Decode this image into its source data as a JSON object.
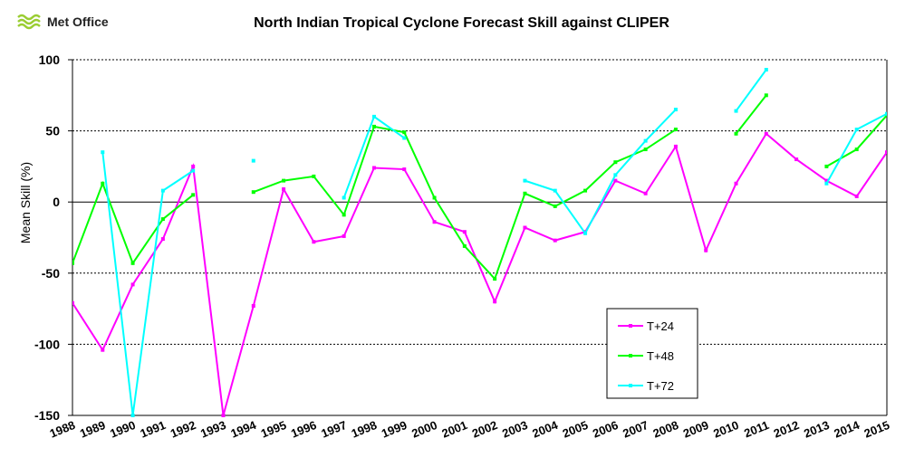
{
  "logo": {
    "text": "Met Office",
    "icon": "met-office-wave-icon",
    "color": "#9acd32"
  },
  "chart_data": {
    "type": "line",
    "title": "North Indian Tropical Cyclone Forecast Skill against CLIPER",
    "xlabel": "",
    "ylabel": "Mean Skill  (%)",
    "ylim": [
      -150,
      100
    ],
    "yticks": [
      100,
      50,
      0,
      -50,
      -100,
      -150
    ],
    "grid": true,
    "legend_position": "bottom-right",
    "categories": [
      "1988",
      "1989",
      "1990",
      "1991",
      "1992",
      "1993",
      "1994",
      "1995",
      "1996",
      "1997",
      "1998",
      "1999",
      "2000",
      "2001",
      "2002",
      "2003",
      "2004",
      "2005",
      "2006",
      "2007",
      "2008",
      "2009",
      "2010",
      "2011",
      "2012",
      "2013",
      "2014",
      "2015"
    ],
    "series": [
      {
        "name": "T+24",
        "color": "#ff00ff",
        "values": [
          -71,
          -104,
          -58,
          -26,
          25,
          -150,
          -73,
          9,
          -28,
          -24,
          24,
          23,
          -14,
          -21,
          -70,
          -18,
          -27,
          -21,
          15,
          6,
          39,
          -34,
          13,
          48,
          30,
          15,
          4,
          35
        ]
      },
      {
        "name": "T+48",
        "color": "#00ff00",
        "values": [
          -43,
          13,
          -43,
          -12,
          5,
          null,
          7,
          15,
          18,
          -9,
          53,
          49,
          3,
          -31,
          -54,
          6,
          -3,
          8,
          28,
          37,
          51,
          null,
          48,
          75,
          null,
          25,
          37,
          61
        ]
      },
      {
        "name": "T+72",
        "color": "#00ffff",
        "values": [
          null,
          35,
          -150,
          8,
          22,
          null,
          29,
          null,
          null,
          3,
          60,
          45,
          null,
          null,
          null,
          15,
          8,
          -22,
          19,
          43,
          65,
          null,
          64,
          93,
          null,
          13,
          51,
          62
        ]
      }
    ]
  }
}
